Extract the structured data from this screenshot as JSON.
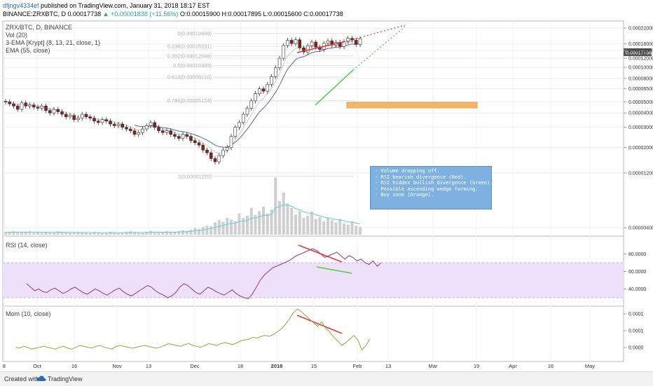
{
  "header": {
    "user": "dfjngv4334ef",
    "published": " published on TradingView.com, January 31, 2018 18:17 EST",
    "symbol": "BINANCE:ZRXBTC, D",
    "last": "0.00017738",
    "change": "▲ +0.00001838 (+11.56%)",
    "ohlc": "O:0.00015900 H:0.00017895 L:0.00015600 C:0.00017738"
  },
  "indicators": {
    "pair": "ZRX/BTC, D, BINANCE",
    "vol": "Vol (20)",
    "ema3": "3-EMA [Krypt] (8, 13, 21, close, 1)",
    "ema55": "EMA (55, close)",
    "rsi": "RSI (14, close)",
    "mom": "Mom (10, close)"
  },
  "annotation": [
    "- Volume dropping off.",
    "- RSI bearish divergence (Red).",
    "- RSI hidden bullish divergence (Green).",
    "- Possible ascending wedge forming.",
    "- Buy zone (Orange)."
  ],
  "footer": {
    "created": "Created with",
    "brand": "TradingView"
  },
  "chart_data": {
    "type": "candlestick",
    "price_axis_labels": [
      "0.00022000",
      "0.00017738",
      "0.00016000",
      "0.00014000",
      "0.00012000",
      "0.00010000",
      "0.00008000",
      "0.00006500",
      "0.00005000",
      "0.00004000",
      "0.00003000",
      "0.00002000",
      "0.00001200",
      "0.00000400"
    ],
    "last_price": "0.00017738",
    "fib_levels": [
      {
        "label": "0(0.00019688)",
        "value": 0.00019688
      },
      {
        "label": "0.236(0.00015231)",
        "value": 0.00015231
      },
      {
        "label": "0.382(0.00012566)",
        "value": 0.00012566
      },
      {
        "label": "0.5(0.00010385)",
        "value": 0.00010385
      },
      {
        "label": "0.618(0.00008210)",
        "value": 8.21e-05
      },
      {
        "label": "0.786(0.00005124)",
        "value": 5.124e-05
      },
      {
        "label": "1(0.00001120)",
        "value": 1.12e-05
      }
    ],
    "time_axis_labels": [
      "8",
      "Oct",
      "16",
      "Nov",
      "13",
      "Dec",
      "18",
      "2018",
      "15",
      "Feb",
      "13",
      "Mar",
      "19",
      "Apr",
      "16",
      "May"
    ],
    "closes": [
      5.0,
      4.8,
      4.6,
      4.3,
      4.9,
      4.6,
      4.7,
      4.5,
      4.4,
      4.6,
      4.2,
      4.0,
      4.3,
      4.1,
      3.9,
      3.7,
      3.8,
      3.5,
      3.6,
      3.9,
      3.7,
      3.6,
      3.4,
      3.3,
      3.5,
      3.4,
      3.2,
      3.1,
      3.2,
      3.0,
      2.9,
      2.8,
      2.6,
      2.7,
      2.9,
      3.1,
      3.3,
      3.0,
      2.8,
      2.7,
      2.8,
      2.6,
      2.5,
      2.4,
      2.6,
      2.5,
      2.3,
      2.2,
      2.1,
      1.9,
      1.8,
      1.6,
      1.5,
      1.7,
      1.9,
      2.0,
      2.5,
      3.0,
      3.3,
      3.9,
      4.4,
      5.1,
      5.9,
      6.5,
      6.2,
      7.1,
      8.3,
      9.9,
      12.0,
      15.5,
      17.2,
      16.1,
      17.4,
      14.8,
      13.6,
      15.4,
      16.6,
      15.0,
      14.3,
      16.2,
      17.0,
      15.6,
      16.5,
      15.2,
      16.8,
      17.9,
      17.3,
      15.8,
      17.738
    ],
    "volumes": [
      0.5,
      0.4,
      0.6,
      0.5,
      0.4,
      0.5,
      0.6,
      0.5,
      0.4,
      0.3,
      0.5,
      0.4,
      0.4,
      0.6,
      0.5,
      0.4,
      0.3,
      0.4,
      0.5,
      0.4,
      0.4,
      0.3,
      0.5,
      0.4,
      0.3,
      0.4,
      0.5,
      0.4,
      0.3,
      0.4,
      0.5,
      0.6,
      0.4,
      0.3,
      0.4,
      0.5,
      0.7,
      0.5,
      0.4,
      0.5,
      0.6,
      0.4,
      0.5,
      0.6,
      0.8,
      0.7,
      0.9,
      1.2,
      1.0,
      1.4,
      1.6,
      1.5,
      2.2,
      2.6,
      2.3,
      3.0,
      2.7,
      2.4,
      3.8,
      3.0,
      3.4,
      4.8,
      3.5,
      4.2,
      5.0,
      3.8,
      4.5,
      10.2,
      6.0,
      7.5,
      5.6,
      4.8,
      3.6,
      4.2,
      3.0,
      3.4,
      4.1,
      2.8,
      3.2,
      2.4,
      3.0,
      2.6,
      2.2,
      2.8,
      2.0,
      1.8,
      2.4,
      1.6,
      1.4
    ],
    "rsi_range": [
      0,
      100
    ],
    "rsi_ticks": [
      "80.0000",
      "60.0000",
      "40.0000"
    ],
    "rsi_band": [
      30,
      70
    ],
    "rsi": [
      46,
      42,
      38,
      40,
      37,
      36,
      39,
      41,
      38,
      35,
      37,
      40,
      42,
      39,
      36,
      34,
      37,
      40,
      38,
      35,
      33,
      36,
      39,
      41,
      37,
      34,
      32,
      35,
      38,
      41,
      44,
      42,
      38,
      35,
      33,
      30,
      32,
      36,
      42,
      46,
      44,
      40,
      36,
      34,
      38,
      42,
      40,
      37,
      35,
      33,
      36,
      39,
      35,
      32,
      30,
      29,
      34,
      42,
      50,
      56,
      60,
      64,
      66,
      68,
      70,
      72,
      75,
      78,
      80,
      82,
      84,
      86,
      84,
      80,
      76,
      78,
      80,
      82,
      78,
      74,
      78,
      76,
      72,
      74,
      70,
      68,
      72,
      66,
      70
    ],
    "mom_ticks": [
      "0.0001",
      "0.0001",
      "0.0000"
    ],
    "mom": [
      0.1,
      0.0,
      0.2,
      0.1,
      -0.1,
      0.0,
      0.1,
      0.2,
      0.1,
      0.0,
      -0.1,
      0.1,
      0.2,
      0.0,
      -0.1,
      0.1,
      0.3,
      0.2,
      0.1,
      0.0,
      0.2,
      0.3,
      0.1,
      0.0,
      -0.1,
      0.2,
      0.3,
      0.2,
      0.1,
      0.0,
      0.1,
      0.2,
      0.3,
      0.2,
      0.1,
      0.0,
      0.1,
      0.3,
      0.5,
      0.4,
      0.3,
      0.2,
      0.4,
      0.5,
      0.3,
      0.2,
      0.1,
      0.3,
      0.5,
      0.4,
      0.3,
      0.5,
      0.6,
      0.5,
      0.4,
      0.6,
      0.8,
      0.9,
      1.0,
      1.2,
      1.1,
      1.3,
      1.4,
      1.3,
      1.5,
      1.8,
      2.1,
      2.6,
      3.2,
      3.9,
      4.3,
      4.0,
      3.6,
      3.2,
      2.8,
      2.4,
      2.9,
      2.2,
      1.8,
      1.2,
      0.8,
      0.3,
      0.6,
      1.0,
      1.4,
      0.9,
      -0.2,
      0.3,
      1.0
    ]
  }
}
